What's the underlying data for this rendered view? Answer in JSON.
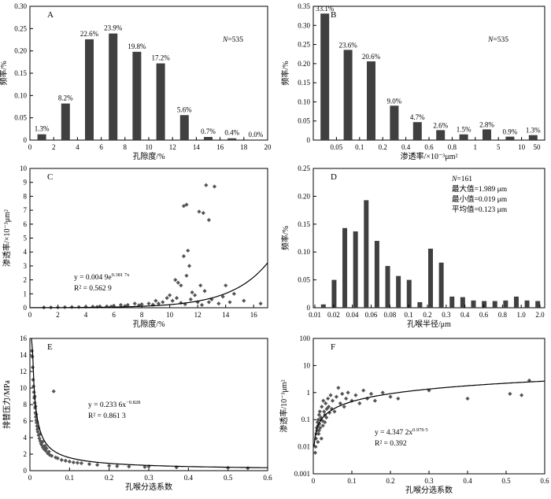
{
  "chart_data": [
    {
      "id": "A",
      "type": "bar",
      "panel_label": "A",
      "note": "N=535",
      "xlabel": "孔隙度/%",
      "ylabel": "频率/%",
      "xticks": [
        "0",
        "2",
        "4",
        "6",
        "8",
        "10",
        "12",
        "14",
        "16",
        "18",
        "20"
      ],
      "yticks": [
        "0",
        "0.05",
        "0.10",
        "0.15",
        "0.20",
        "0.25",
        "0.30"
      ],
      "ylim": [
        0,
        0.3
      ],
      "xlim": [
        0,
        20
      ],
      "x": [
        1,
        3,
        5,
        7,
        9,
        11,
        13,
        15,
        17,
        19
      ],
      "values": [
        0.013,
        0.082,
        0.226,
        0.239,
        0.198,
        0.172,
        0.056,
        0.007,
        0.004,
        0.0
      ],
      "data_labels": [
        "1.3%",
        "8.2%",
        "22.6%",
        "23.9%",
        "19.8%",
        "17.2%",
        "5.6%",
        "0.7%",
        "0.4%",
        "0.0%"
      ]
    },
    {
      "id": "B",
      "type": "bar",
      "panel_label": "B",
      "note": "N=535",
      "xlabel": "渗透率/×10⁻³μm²",
      "ylabel": "频率/%",
      "categories": [
        "<0.05",
        "0.05-0.1",
        "0.1-0.2",
        "0.2-0.4",
        "0.4-0.6",
        "0.6-0.8",
        "0.8-1",
        "1-5",
        "5-10",
        "10-50"
      ],
      "xticks": [
        "0.05",
        "0.1",
        "0.2",
        "0.4",
        "0.6",
        "0.8",
        "1",
        "5",
        "10",
        "50"
      ],
      "yticks": [
        "0",
        "0.05",
        "0.10",
        "0.15",
        "0.20",
        "0.25",
        "0.30",
        "0.35"
      ],
      "ylim": [
        0,
        0.35
      ],
      "values": [
        0.331,
        0.236,
        0.206,
        0.09,
        0.047,
        0.026,
        0.015,
        0.028,
        0.009,
        0.013
      ],
      "data_labels": [
        "33.1%",
        "23.6%",
        "20.6%",
        "9.0%",
        "4.7%",
        "2.6%",
        "1.5%",
        "2.8%",
        "0.9%",
        "1.3%"
      ]
    },
    {
      "id": "C",
      "type": "scatter",
      "panel_label": "C",
      "xlabel": "孔隙度/%",
      "ylabel": "渗透率/×10⁻³μm²",
      "xticks": [
        "0",
        "2",
        "4",
        "6",
        "8",
        "10",
        "12",
        "14",
        "16"
      ],
      "yticks": [
        "0",
        "1",
        "2",
        "3",
        "4",
        "5",
        "6",
        "7",
        "8",
        "9",
        "10"
      ],
      "xlim": [
        0,
        17
      ],
      "ylim": [
        0,
        10
      ],
      "fit": {
        "type": "exp",
        "a": 0.0049,
        "b": 0.3817
      },
      "equation": "y = 0.004 9e",
      "equation_exp": "0.381 7x",
      "r2": "R² = 0.562 9",
      "points": [
        [
          11.0,
          7.3
        ],
        [
          11.2,
          7.4
        ],
        [
          12.1,
          6.9
        ],
        [
          12.4,
          6.8
        ],
        [
          12.8,
          6.3
        ],
        [
          12.6,
          8.8
        ],
        [
          13.2,
          8.7
        ],
        [
          11.3,
          4.1
        ],
        [
          11.0,
          3.7
        ],
        [
          11.4,
          3.0
        ],
        [
          11.2,
          2.3
        ],
        [
          10.4,
          2.0
        ],
        [
          10.6,
          1.8
        ],
        [
          10.8,
          1.6
        ],
        [
          12.2,
          1.6
        ],
        [
          12.5,
          1.2
        ],
        [
          14.6,
          1.0
        ],
        [
          14.0,
          1.6
        ],
        [
          13.8,
          0.8
        ],
        [
          15.3,
          0.5
        ],
        [
          16.5,
          0.3
        ],
        [
          11.6,
          1.1
        ],
        [
          11.8,
          0.9
        ],
        [
          9.8,
          0.7
        ],
        [
          9.5,
          0.4
        ],
        [
          9.0,
          0.5
        ],
        [
          8.5,
          0.3
        ],
        [
          10.0,
          0.9
        ],
        [
          10.2,
          0.5
        ],
        [
          10.5,
          0.7
        ],
        [
          11.5,
          0.6
        ],
        [
          12.0,
          0.4
        ],
        [
          12.8,
          0.4
        ],
        [
          13.5,
          0.3
        ],
        [
          7.5,
          0.3
        ],
        [
          7.0,
          0.2
        ],
        [
          6.5,
          0.2
        ],
        [
          6.0,
          0.15
        ],
        [
          5.5,
          0.1
        ],
        [
          5.0,
          0.1
        ],
        [
          4.5,
          0.08
        ],
        [
          4.0,
          0.07
        ],
        [
          3.5,
          0.05
        ],
        [
          3.0,
          0.05
        ],
        [
          2.5,
          0.04
        ],
        [
          2.0,
          0.03
        ],
        [
          1.5,
          0.02
        ],
        [
          1.0,
          0.02
        ],
        [
          8.0,
          0.25
        ],
        [
          9.2,
          0.3
        ],
        [
          10.8,
          0.35
        ],
        [
          11.1,
          0.25
        ],
        [
          12.3,
          0.2
        ],
        [
          13.0,
          0.6
        ],
        [
          14.3,
          0.4
        ],
        [
          6.8,
          0.12
        ],
        [
          7.8,
          0.18
        ],
        [
          8.8,
          0.22
        ],
        [
          5.8,
          0.08
        ],
        [
          4.8,
          0.06
        ]
      ]
    },
    {
      "id": "D",
      "type": "bar",
      "panel_label": "D",
      "xlabel": "孔喉半径/μm",
      "ylabel": "频率/%",
      "xticks": [
        "0.01",
        "0.02",
        "0.04",
        "0.06",
        "0.08",
        "0.1",
        "0.2",
        "0.3",
        "0.4",
        "0.6",
        "0.8",
        "1.0",
        "2.0"
      ],
      "yticks": [
        "0",
        "0.05",
        "0.10",
        "0.15",
        "0.20",
        "0.25"
      ],
      "ylim": [
        0,
        0.25
      ],
      "values": [
        0.006,
        0.05,
        0.143,
        0.137,
        0.193,
        0.12,
        0.075,
        0.057,
        0.05,
        0.01,
        0.106,
        0.081,
        0.02,
        0.019,
        0.013,
        0.012,
        0.012,
        0.013,
        0.02,
        0.013,
        0.012
      ],
      "stats": [
        "N=161",
        "最大值=1.989 μm",
        "最小值=0.019 μm",
        "平均值=0.123 μm"
      ]
    },
    {
      "id": "E",
      "type": "scatter",
      "panel_label": "E",
      "xlabel": "孔喉分选系数",
      "ylabel": "排替压力/MPa",
      "xticks": [
        "0",
        "0.1",
        "0.2",
        "0.3",
        "0.4",
        "0.5",
        "0.6"
      ],
      "yticks": [
        "0",
        "2",
        "4",
        "6",
        "8",
        "10",
        "12",
        "14",
        "16"
      ],
      "xlim": [
        0,
        0.6
      ],
      "ylim": [
        0,
        16
      ],
      "fit": {
        "type": "power",
        "a": 0.2336,
        "b": -0.828
      },
      "equation": "y = 0.233 6x",
      "equation_exp": "−0.828",
      "r2": "R² = 0.861 3",
      "points": [
        [
          0.005,
          14.5
        ],
        [
          0.006,
          13.8
        ],
        [
          0.007,
          12.5
        ],
        [
          0.008,
          11.0
        ],
        [
          0.009,
          10.2
        ],
        [
          0.01,
          9.5
        ],
        [
          0.011,
          8.8
        ],
        [
          0.012,
          8.2
        ],
        [
          0.013,
          7.6
        ],
        [
          0.014,
          7.0
        ],
        [
          0.015,
          6.5
        ],
        [
          0.016,
          6.1
        ],
        [
          0.017,
          5.8
        ],
        [
          0.018,
          5.4
        ],
        [
          0.019,
          5.0
        ],
        [
          0.02,
          4.7
        ],
        [
          0.022,
          4.3
        ],
        [
          0.024,
          3.9
        ],
        [
          0.026,
          3.6
        ],
        [
          0.028,
          3.3
        ],
        [
          0.03,
          3.1
        ],
        [
          0.033,
          2.8
        ],
        [
          0.036,
          2.6
        ],
        [
          0.04,
          2.4
        ],
        [
          0.045,
          2.1
        ],
        [
          0.05,
          1.9
        ],
        [
          0.055,
          1.8
        ],
        [
          0.06,
          9.6
        ],
        [
          0.065,
          1.6
        ],
        [
          0.07,
          1.5
        ],
        [
          0.08,
          1.3
        ],
        [
          0.09,
          1.2
        ],
        [
          0.1,
          1.1
        ],
        [
          0.11,
          1.0
        ],
        [
          0.12,
          0.95
        ],
        [
          0.13,
          0.9
        ],
        [
          0.15,
          0.8
        ],
        [
          0.17,
          0.7
        ],
        [
          0.2,
          0.6
        ],
        [
          0.22,
          0.55
        ],
        [
          0.25,
          0.5
        ],
        [
          0.29,
          0.45
        ],
        [
          0.3,
          0.5
        ],
        [
          0.37,
          0.4
        ],
        [
          0.5,
          0.35
        ],
        [
          0.55,
          0.3
        ],
        [
          0.012,
          9.0
        ],
        [
          0.014,
          7.8
        ],
        [
          0.016,
          6.8
        ],
        [
          0.018,
          5.9
        ],
        [
          0.021,
          5.2
        ],
        [
          0.025,
          4.4
        ],
        [
          0.032,
          3.5
        ],
        [
          0.038,
          3.0
        ],
        [
          0.042,
          2.7
        ],
        [
          0.048,
          2.3
        ]
      ]
    },
    {
      "id": "F",
      "type": "scatter",
      "panel_label": "F",
      "xlabel": "孔喉分选系数",
      "ylabel": "渗透率/10⁻³μm²",
      "xticks": [
        "0",
        "0.1",
        "0.2",
        "0.3",
        "0.4",
        "0.5",
        "0.6"
      ],
      "yticks": [
        "0.001",
        "0.01",
        "0.1",
        "1",
        "10",
        "100"
      ],
      "xlim": [
        0,
        0.6
      ],
      "ylim": [
        0.001,
        100
      ],
      "yscale": "log",
      "fit": {
        "type": "power",
        "a": 4.3472,
        "b": 0.9705
      },
      "equation": "y = 4.347 2x",
      "equation_exp": "0.970 5",
      "r2": "R² = 0.392",
      "points": [
        [
          0.005,
          0.006
        ],
        [
          0.006,
          0.01
        ],
        [
          0.007,
          0.02
        ],
        [
          0.008,
          0.03
        ],
        [
          0.009,
          0.05
        ],
        [
          0.01,
          0.04
        ],
        [
          0.011,
          0.08
        ],
        [
          0.012,
          0.06
        ],
        [
          0.013,
          0.1
        ],
        [
          0.014,
          0.03
        ],
        [
          0.015,
          0.15
        ],
        [
          0.016,
          0.07
        ],
        [
          0.017,
          0.2
        ],
        [
          0.018,
          0.05
        ],
        [
          0.02,
          0.12
        ],
        [
          0.022,
          0.3
        ],
        [
          0.024,
          0.09
        ],
        [
          0.026,
          0.5
        ],
        [
          0.028,
          0.2
        ],
        [
          0.03,
          0.15
        ],
        [
          0.032,
          0.4
        ],
        [
          0.035,
          0.25
        ],
        [
          0.038,
          0.6
        ],
        [
          0.04,
          0.3
        ],
        [
          0.045,
          0.8
        ],
        [
          0.05,
          0.5
        ],
        [
          0.055,
          0.2
        ],
        [
          0.06,
          0.7
        ],
        [
          0.065,
          1.5
        ],
        [
          0.07,
          0.4
        ],
        [
          0.075,
          0.9
        ],
        [
          0.08,
          0.3
        ],
        [
          0.085,
          0.6
        ],
        [
          0.09,
          1.0
        ],
        [
          0.1,
          0.5
        ],
        [
          0.11,
          0.8
        ],
        [
          0.12,
          0.4
        ],
        [
          0.13,
          1.2
        ],
        [
          0.14,
          0.6
        ],
        [
          0.15,
          0.9
        ],
        [
          0.16,
          0.5
        ],
        [
          0.18,
          1.0
        ],
        [
          0.2,
          0.7
        ],
        [
          0.22,
          0.6
        ],
        [
          0.3,
          1.2
        ],
        [
          0.4,
          0.6
        ],
        [
          0.51,
          0.9
        ],
        [
          0.54,
          0.8
        ],
        [
          0.56,
          2.8
        ],
        [
          0.012,
          0.015
        ],
        [
          0.015,
          0.04
        ],
        [
          0.018,
          0.1
        ],
        [
          0.021,
          0.02
        ],
        [
          0.025,
          0.06
        ],
        [
          0.03,
          0.08
        ],
        [
          0.034,
          0.12
        ],
        [
          0.042,
          0.18
        ],
        [
          0.048,
          0.25
        ]
      ]
    }
  ]
}
